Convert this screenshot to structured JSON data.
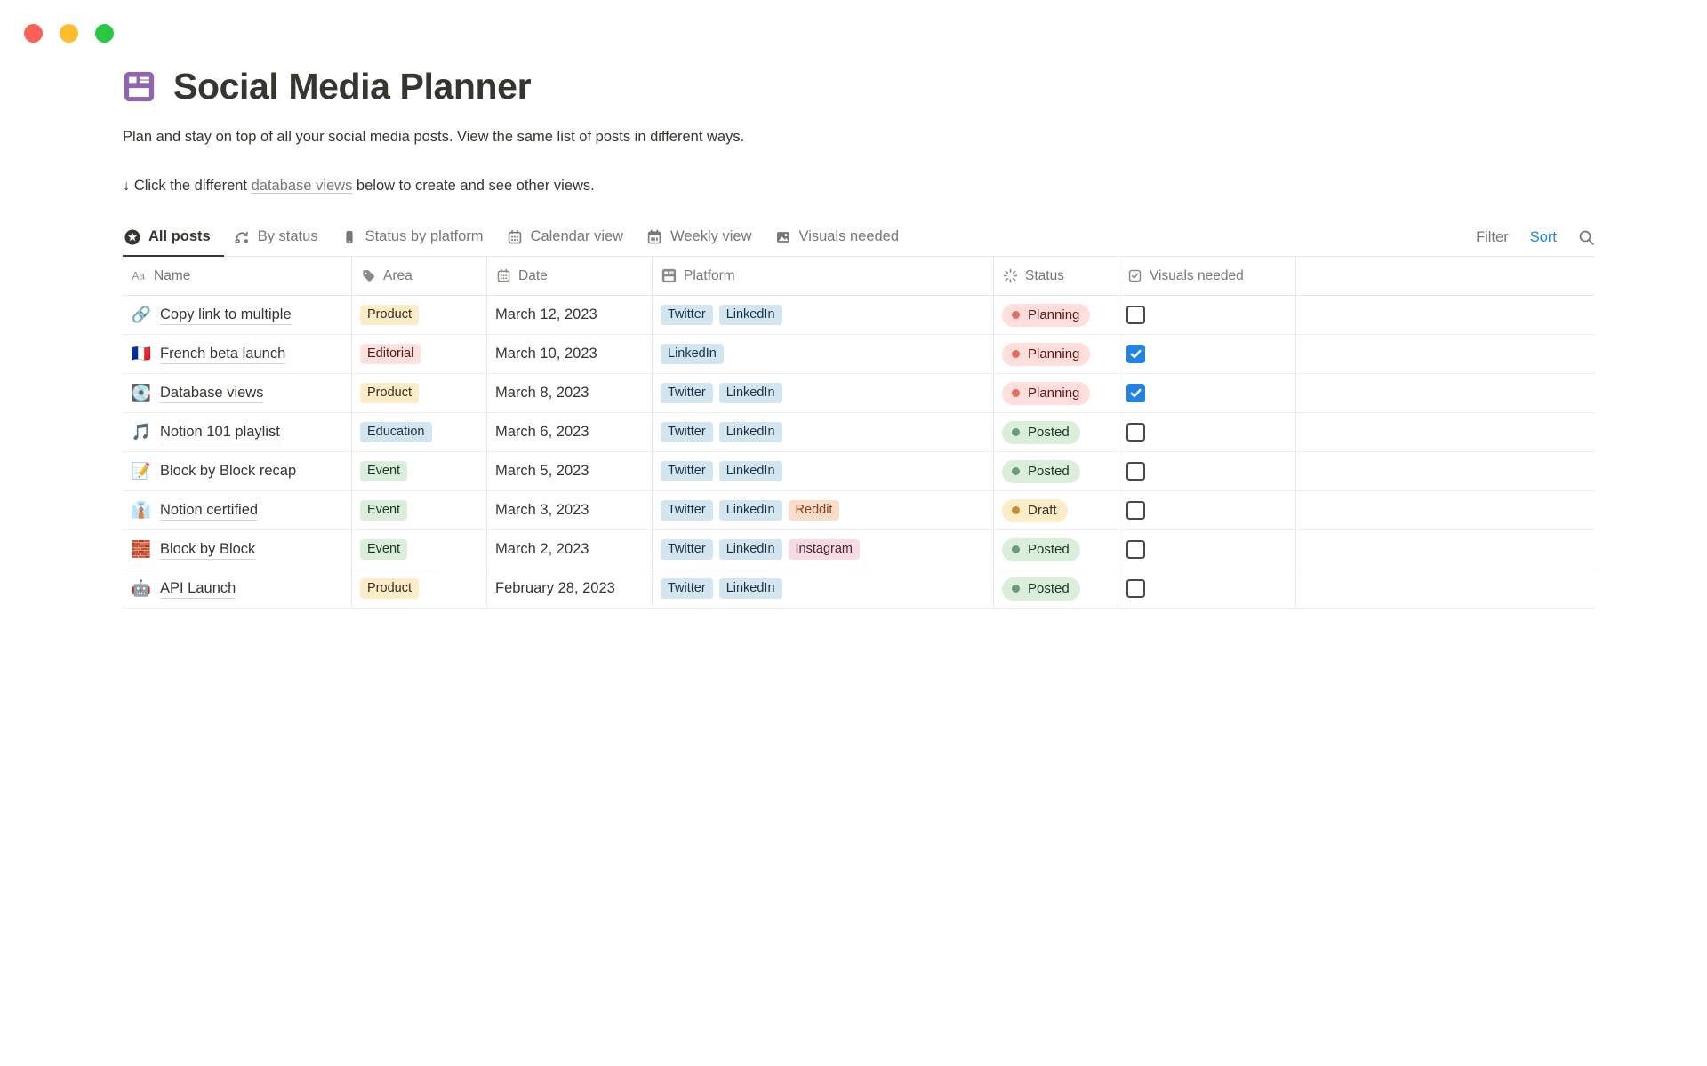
{
  "window": {
    "traffic_lights": [
      {
        "name": "close",
        "color": "#FE5F57"
      },
      {
        "name": "minimize",
        "color": "#FEBC2E"
      },
      {
        "name": "zoom",
        "color": "#28C840"
      }
    ]
  },
  "page": {
    "icon": "database-icon",
    "icon_color": "#9065B0",
    "title": "Social Media Planner",
    "description": "Plan and stay on top of all your social media posts. View the same list of posts in different ways.",
    "hint": {
      "prefix": "↓ Click the different ",
      "link": "database views",
      "suffix": " below to create and see other views."
    }
  },
  "toolbar": {
    "tabs": [
      {
        "label": "All posts",
        "icon": "star-circle-icon",
        "active": true
      },
      {
        "label": "By status",
        "icon": "status-flow-icon",
        "active": false
      },
      {
        "label": "Status by platform",
        "icon": "phone-icon",
        "active": false
      },
      {
        "label": "Calendar view",
        "icon": "calendar-icon",
        "active": false
      },
      {
        "label": "Weekly view",
        "icon": "calendar-week-icon",
        "active": false
      },
      {
        "label": "Visuals needed",
        "icon": "image-icon",
        "active": false
      }
    ],
    "filter_label": "Filter",
    "sort_label": "Sort",
    "search_icon": "search-icon"
  },
  "table": {
    "columns": [
      {
        "label": "Name",
        "icon": "aa-icon"
      },
      {
        "label": "Area",
        "icon": "tag-icon"
      },
      {
        "label": "Date",
        "icon": "calendar-icon"
      },
      {
        "label": "Platform",
        "icon": "database-icon"
      },
      {
        "label": "Status",
        "icon": "status-spinner-icon"
      },
      {
        "label": "Visuals needed",
        "icon": "checkbox-icon"
      }
    ],
    "rows": [
      {
        "icon": "🔗",
        "name": "Copy link to multiple",
        "area": {
          "label": "Product",
          "color": "yellow"
        },
        "date": "March 12, 2023",
        "platforms": [
          {
            "label": "Twitter",
            "color": "blue"
          },
          {
            "label": "LinkedIn",
            "color": "blue"
          }
        ],
        "status": {
          "label": "Planning",
          "color": "red"
        },
        "visuals_needed": false
      },
      {
        "icon": "🇫🇷",
        "name": "French beta launch",
        "area": {
          "label": "Editorial",
          "color": "red"
        },
        "date": "March 10, 2023",
        "platforms": [
          {
            "label": "LinkedIn",
            "color": "blue"
          }
        ],
        "status": {
          "label": "Planning",
          "color": "red"
        },
        "visuals_needed": true
      },
      {
        "icon": "💽",
        "name": "Database views",
        "area": {
          "label": "Product",
          "color": "yellow"
        },
        "date": "March 8, 2023",
        "platforms": [
          {
            "label": "Twitter",
            "color": "blue"
          },
          {
            "label": "LinkedIn",
            "color": "blue"
          }
        ],
        "status": {
          "label": "Planning",
          "color": "red"
        },
        "visuals_needed": true
      },
      {
        "icon": "🎵",
        "name": "Notion 101 playlist",
        "area": {
          "label": "Education",
          "color": "blue"
        },
        "date": "March 6, 2023",
        "platforms": [
          {
            "label": "Twitter",
            "color": "blue"
          },
          {
            "label": "LinkedIn",
            "color": "blue"
          }
        ],
        "status": {
          "label": "Posted",
          "color": "green"
        },
        "visuals_needed": false
      },
      {
        "icon": "📝",
        "name": "Block by Block recap",
        "area": {
          "label": "Event",
          "color": "green"
        },
        "date": "March 5, 2023",
        "platforms": [
          {
            "label": "Twitter",
            "color": "blue"
          },
          {
            "label": "LinkedIn",
            "color": "blue"
          }
        ],
        "status": {
          "label": "Posted",
          "color": "green"
        },
        "visuals_needed": false
      },
      {
        "icon": "👔",
        "name": "Notion certified",
        "area": {
          "label": "Event",
          "color": "green"
        },
        "date": "March 3, 2023",
        "platforms": [
          {
            "label": "Twitter",
            "color": "blue"
          },
          {
            "label": "LinkedIn",
            "color": "blue"
          },
          {
            "label": "Reddit",
            "color": "orange"
          }
        ],
        "status": {
          "label": "Draft",
          "color": "yellow"
        },
        "visuals_needed": false
      },
      {
        "icon": "🧱",
        "name": "Block by Block",
        "area": {
          "label": "Event",
          "color": "green"
        },
        "date": "March 2, 2023",
        "platforms": [
          {
            "label": "Twitter",
            "color": "blue"
          },
          {
            "label": "LinkedIn",
            "color": "blue"
          },
          {
            "label": "Instagram",
            "color": "pink"
          }
        ],
        "status": {
          "label": "Posted",
          "color": "green"
        },
        "visuals_needed": false
      },
      {
        "icon": "🤖",
        "name": "API Launch",
        "area": {
          "label": "Product",
          "color": "yellow"
        },
        "date": "February 28, 2023",
        "platforms": [
          {
            "label": "Twitter",
            "color": "blue"
          },
          {
            "label": "LinkedIn",
            "color": "blue"
          }
        ],
        "status": {
          "label": "Posted",
          "color": "green"
        },
        "visuals_needed": false
      }
    ]
  },
  "palette": {
    "accent": "#2383E2",
    "checkbox_checked": "#2383E2",
    "tags": {
      "yellow": {
        "bg": "#FDECC8",
        "text": "#402C1B"
      },
      "red": {
        "bg": "#FFE2DD",
        "text": "#5D1715"
      },
      "blue": {
        "bg": "#D3E5EF",
        "text": "#183347"
      },
      "green": {
        "bg": "#DBEDDB",
        "text": "#1C3829"
      },
      "orange": {
        "bg": "#FADEC9",
        "text": "#8C3B22"
      },
      "pink": {
        "bg": "#F7DBE4",
        "text": "#4C2337"
      }
    },
    "status": {
      "red": {
        "bg": "#FFDEDB",
        "dot": "#E16F64",
        "text": "#5D1715"
      },
      "green": {
        "bg": "#DBEDDB",
        "dot": "#6C9B7D",
        "text": "#1C3829"
      },
      "yellow": {
        "bg": "#FDECC8",
        "dot": "#C19138",
        "text": "#402C1B"
      }
    }
  }
}
